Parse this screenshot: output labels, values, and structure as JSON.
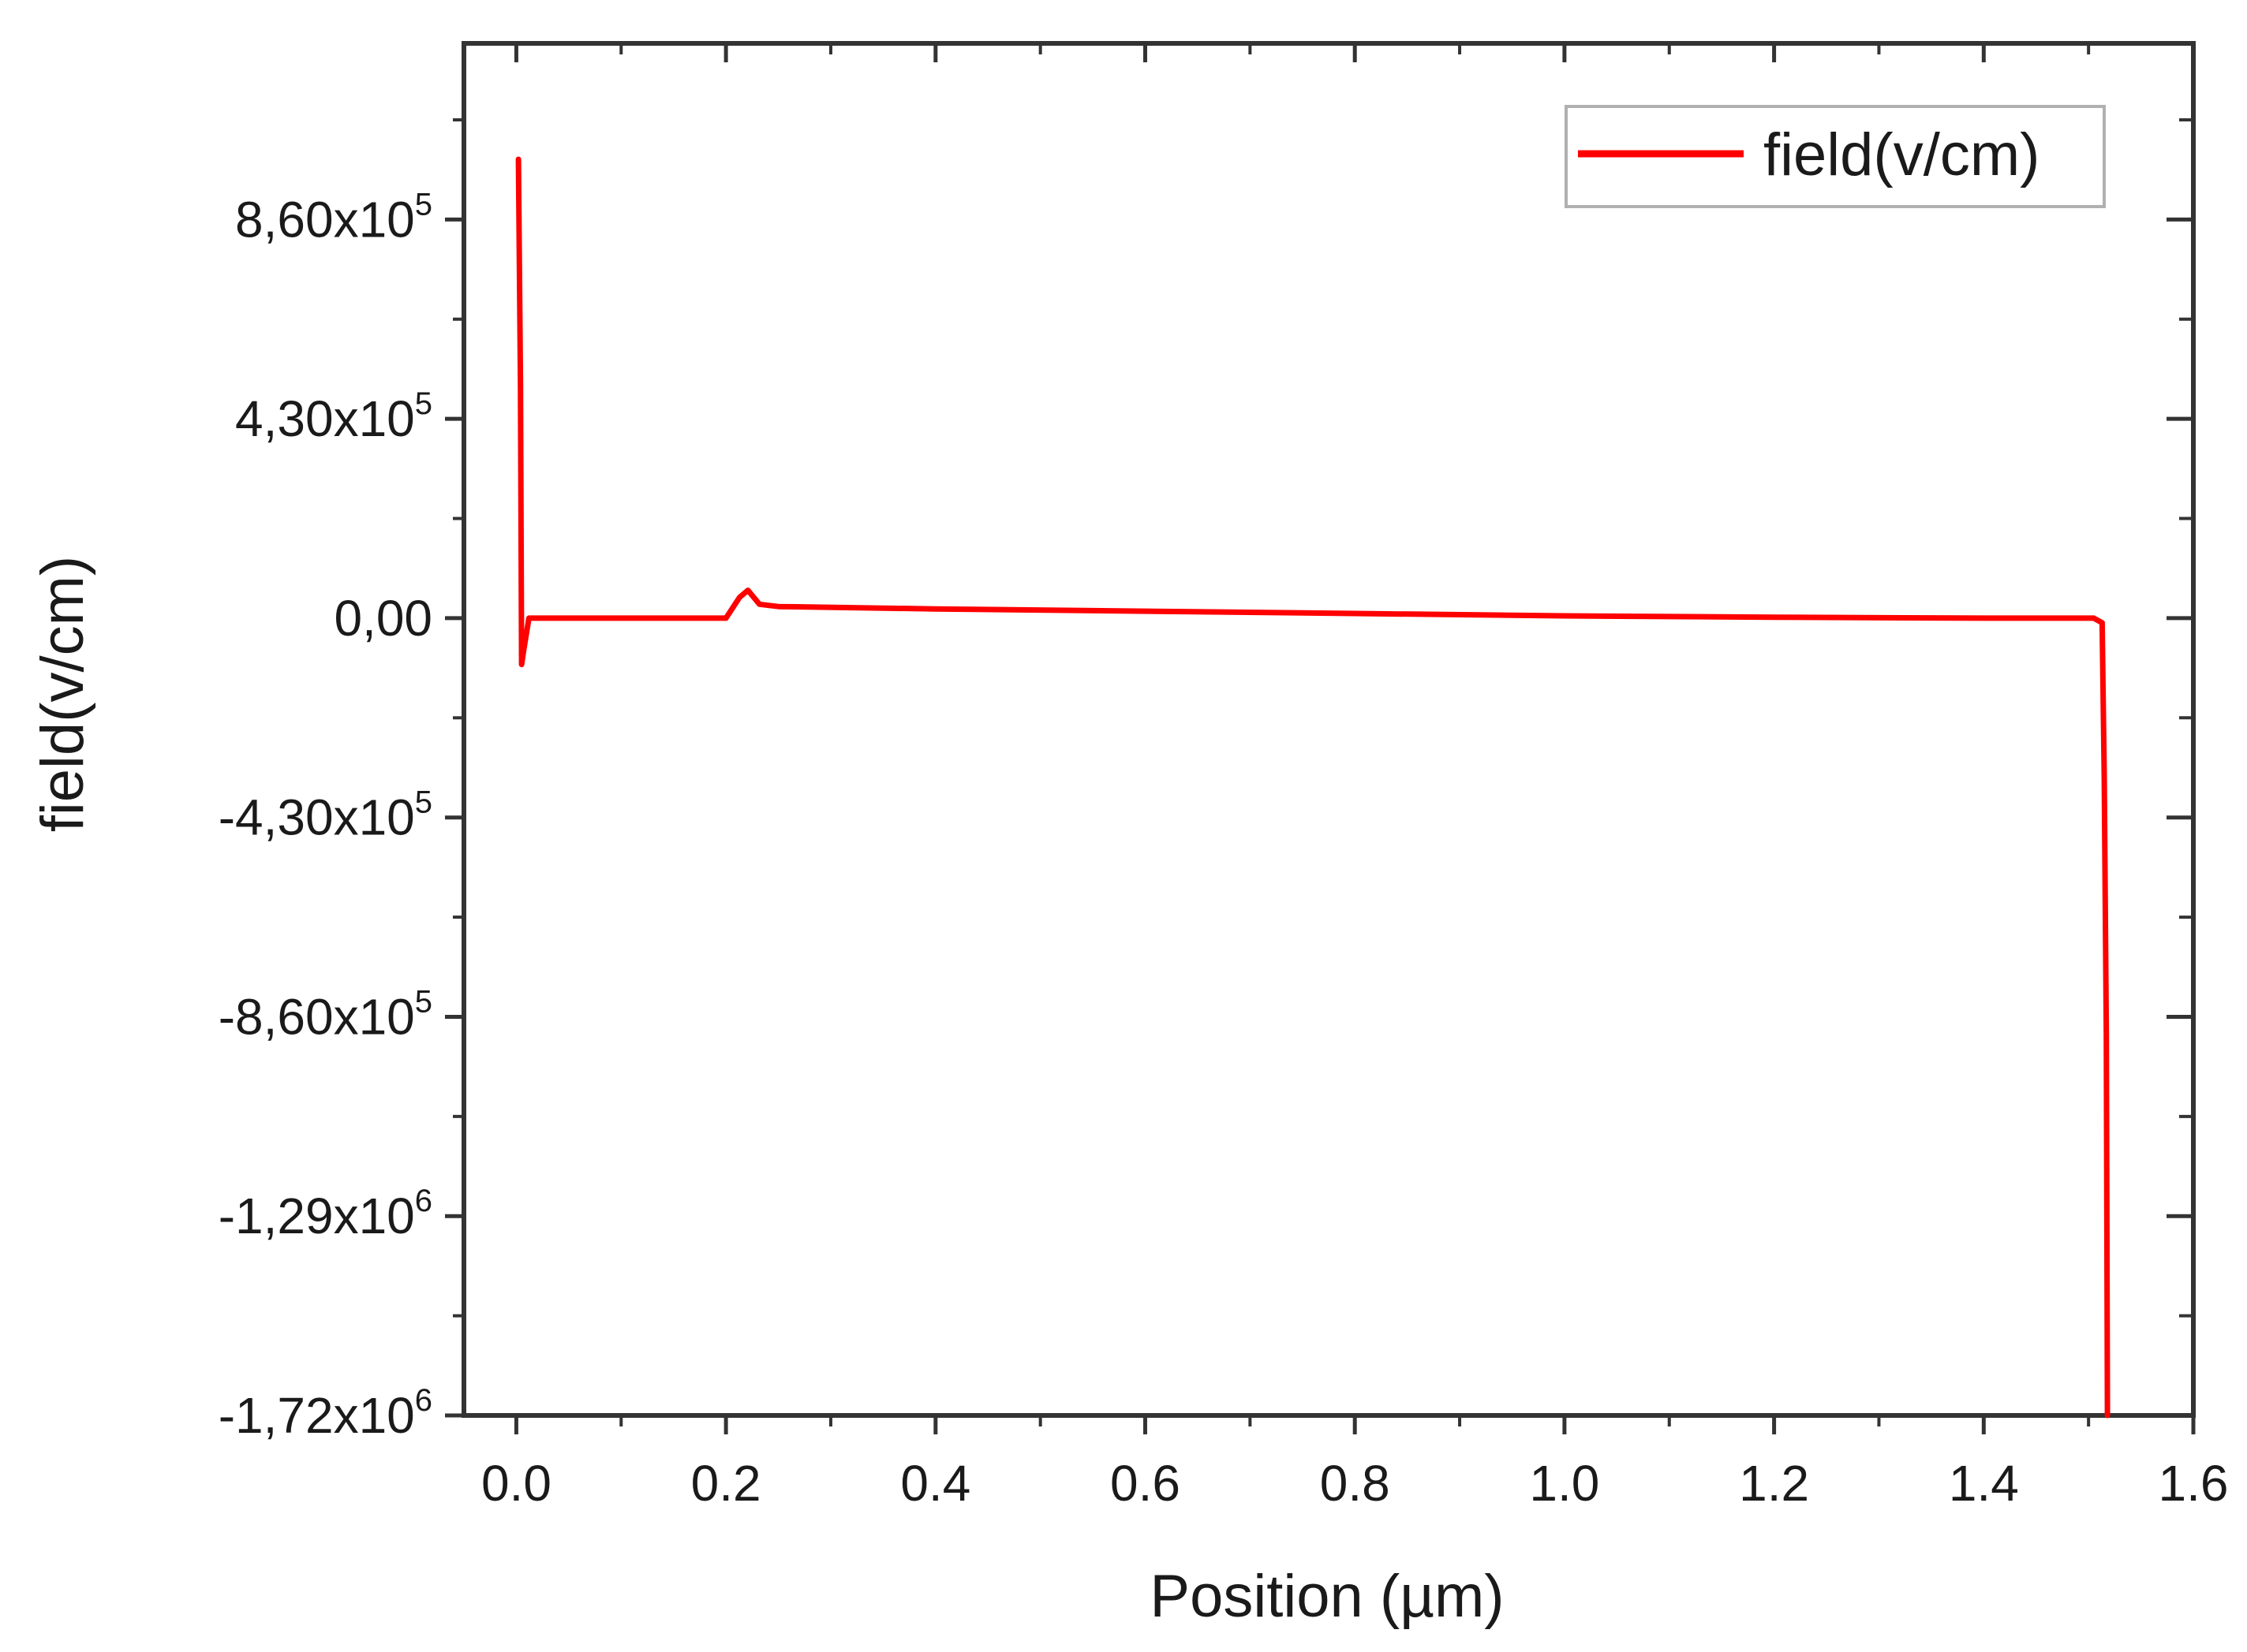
{
  "chart_data": {
    "type": "line",
    "xlabel": "Position (µm)",
    "ylabel": "field(v/cm)",
    "xlim": [
      -0.05,
      1.6
    ],
    "ylim": [
      -1720000,
      1240000
    ],
    "x_ticks": [
      {
        "value": 0.0,
        "label": "0.0"
      },
      {
        "value": 0.2,
        "label": "0.2"
      },
      {
        "value": 0.4,
        "label": "0.4"
      },
      {
        "value": 0.6,
        "label": "0.6"
      },
      {
        "value": 0.8,
        "label": "0.8"
      },
      {
        "value": 1.0,
        "label": "1.0"
      },
      {
        "value": 1.2,
        "label": "1.2"
      },
      {
        "value": 1.4,
        "label": "1.4"
      },
      {
        "value": 1.6,
        "label": "1.6"
      }
    ],
    "y_ticks": [
      {
        "value": 860000,
        "label": "8,60x10",
        "exp": "5"
      },
      {
        "value": 430000,
        "label": "4,30x10",
        "exp": "5"
      },
      {
        "value": 0,
        "label": "0,00",
        "exp": ""
      },
      {
        "value": -430000,
        "label": "-4,30x10",
        "exp": "5"
      },
      {
        "value": -860000,
        "label": "-8,60x10",
        "exp": "5"
      },
      {
        "value": -1290000,
        "label": "-1,29x10",
        "exp": "6"
      },
      {
        "value": -1720000,
        "label": "-1,72x10",
        "exp": "6"
      }
    ],
    "grid": false,
    "legend_position": "top-right",
    "series": [
      {
        "name": "field(v/cm)",
        "color": "#ff0000",
        "points": [
          [
            0.002,
            990000
          ],
          [
            0.004,
            500000
          ],
          [
            0.005,
            -100000
          ],
          [
            0.007,
            -70000
          ],
          [
            0.012,
            0
          ],
          [
            0.05,
            0
          ],
          [
            0.1,
            0
          ],
          [
            0.15,
            0
          ],
          [
            0.2,
            0
          ],
          [
            0.213,
            45000
          ],
          [
            0.221,
            60000
          ],
          [
            0.232,
            30000
          ],
          [
            0.25,
            25000
          ],
          [
            0.4,
            20000
          ],
          [
            0.6,
            15000
          ],
          [
            0.8,
            10000
          ],
          [
            1.0,
            5000
          ],
          [
            1.2,
            2000
          ],
          [
            1.4,
            0
          ],
          [
            1.505,
            0
          ],
          [
            1.513,
            -10000
          ],
          [
            1.515,
            -350000
          ],
          [
            1.517,
            -900000
          ],
          [
            1.518,
            -1720000
          ]
        ]
      }
    ]
  }
}
